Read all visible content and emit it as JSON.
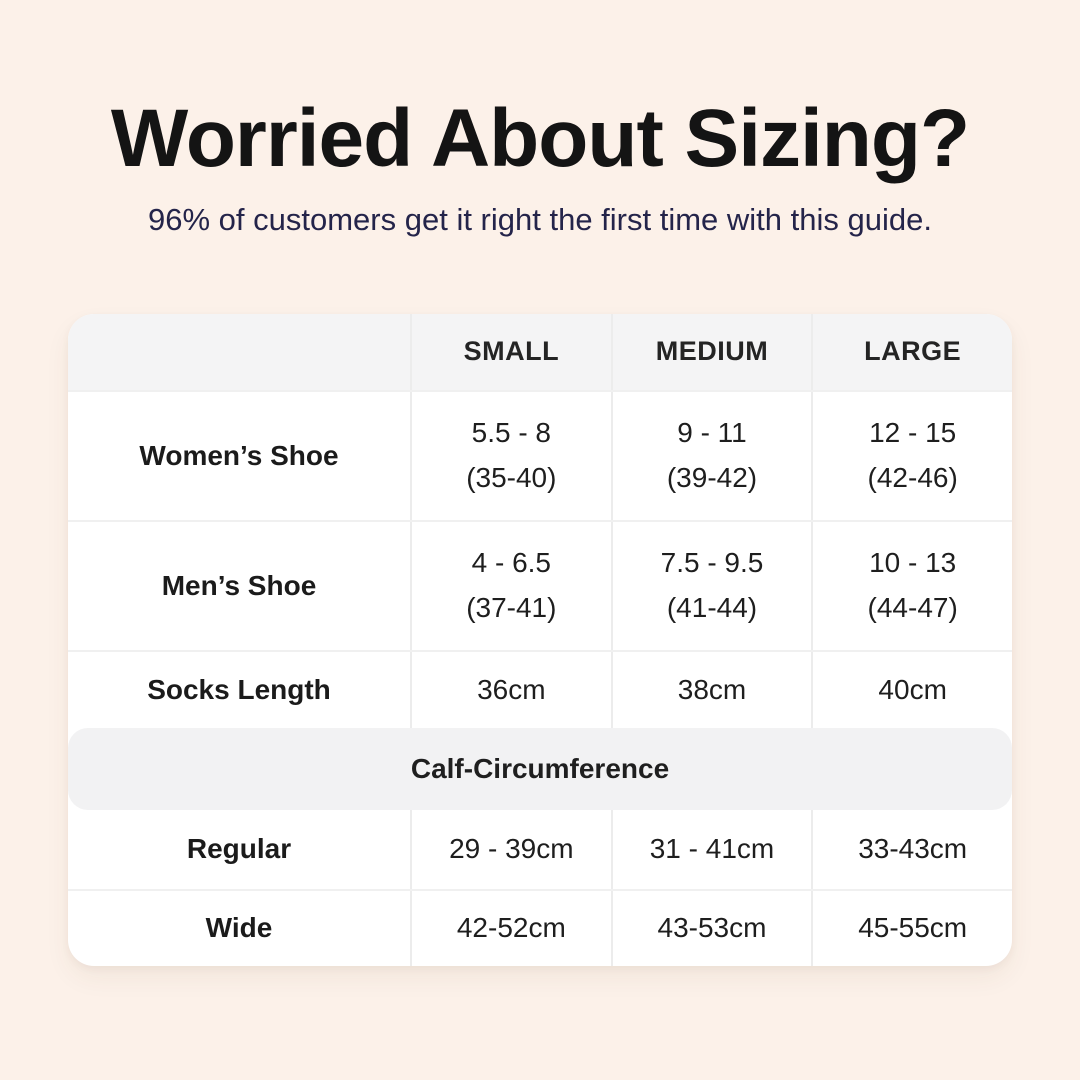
{
  "page": {
    "title": "Worried About Sizing?",
    "subtitle": "96% of customers get it right the first time with this guide."
  },
  "colors": {
    "page_background": "#fcf1e9",
    "table_background": "#ffffff",
    "header_row_background": "#f4f4f5",
    "section_band_background": "#f2f2f3",
    "divider": "#ececec",
    "title_text": "#141414",
    "subtitle_text": "#24244a",
    "table_text": "#1e1e1e"
  },
  "table": {
    "columns": [
      "",
      "SMALL",
      "MEDIUM",
      "LARGE"
    ],
    "rows": [
      {
        "label": "Women’s Shoe",
        "cells": [
          [
            "5.5 - 8",
            "(35-40)"
          ],
          [
            "9 - 11",
            "(39-42)"
          ],
          [
            "12 - 15",
            "(42-46)"
          ]
        ]
      },
      {
        "label": "Men’s Shoe",
        "cells": [
          [
            "4 - 6.5",
            "(37-41)"
          ],
          [
            "7.5 - 9.5",
            "(41-44)"
          ],
          [
            "10 - 13",
            "(44-47)"
          ]
        ]
      },
      {
        "label": "Socks Length",
        "cells": [
          [
            "36cm"
          ],
          [
            "38cm"
          ],
          [
            "40cm"
          ]
        ]
      }
    ],
    "section": {
      "label": "Calf-Circumference"
    },
    "section_rows": [
      {
        "label": "Regular",
        "cells": [
          [
            "29 - 39cm"
          ],
          [
            "31 - 41cm"
          ],
          [
            "33-43cm"
          ]
        ]
      },
      {
        "label": "Wide",
        "cells": [
          [
            "42-52cm"
          ],
          [
            "43-53cm"
          ],
          [
            "45-55cm"
          ]
        ]
      }
    ]
  }
}
